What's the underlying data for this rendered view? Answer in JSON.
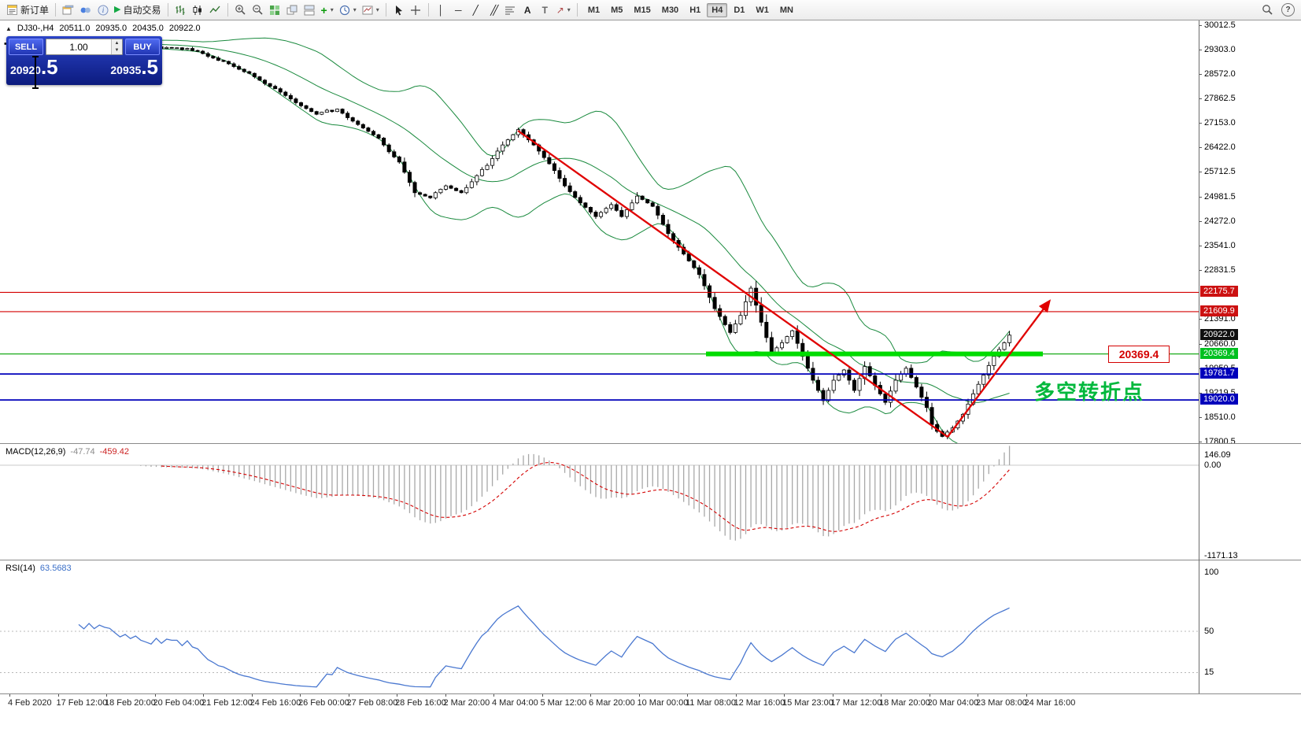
{
  "toolbar": {
    "new_order_label": "新订单",
    "autotrade_label": "自动交易",
    "timeframes": [
      "M1",
      "M5",
      "M15",
      "M30",
      "H1",
      "H4",
      "D1",
      "W1",
      "MN"
    ],
    "active_timeframe": "H4",
    "text_tool_label": "A",
    "label_tool_label": "T",
    "help_label": "?"
  },
  "chart_header": {
    "symbol_period": "DJ30-,H4",
    "open": "20511.0",
    "high": "20935.0",
    "low": "20435.0",
    "close": "20922.0"
  },
  "trade_panel": {
    "sell_label": "SELL",
    "buy_label": "BUY",
    "volume": "1.00",
    "sell_price_main": "20920",
    "sell_price_frac": ".5",
    "buy_price_main": "20935",
    "buy_price_frac": ".5"
  },
  "annotations": {
    "support_label": "20369.4",
    "pivot_text": "多空转折点"
  },
  "macd": {
    "name": "MACD(12,26,9)",
    "value_main": "-47.74",
    "value_signal": "-459.42",
    "axis": [
      [
        "146.09",
        578
      ],
      [
        "0.00",
        591
      ],
      [
        "-1171.13",
        706
      ]
    ]
  },
  "rsi": {
    "name": "RSI(14)",
    "value": "63.5683",
    "axis": [
      [
        "100",
        727
      ],
      [
        "50",
        802
      ],
      [
        "15",
        854
      ]
    ]
  },
  "price_axis": {
    "ticks": [
      [
        "30012.5",
        32
      ],
      [
        "29303.0",
        63
      ],
      [
        "28572.0",
        94
      ],
      [
        "27862.5",
        125
      ],
      [
        "27153.0",
        156
      ],
      [
        "26422.0",
        187
      ],
      [
        "25712.5",
        218
      ],
      [
        "24981.5",
        250
      ],
      [
        "24272.0",
        281
      ],
      [
        "23541.0",
        312
      ],
      [
        "22831.5",
        343
      ],
      [
        "21391.0",
        405
      ],
      [
        "20660.0",
        437
      ],
      [
        "19950.5",
        468
      ],
      [
        "19219.5",
        499
      ],
      [
        "18510.0",
        530
      ],
      [
        "17800.5",
        561
      ]
    ],
    "badges": [
      [
        "22175.7",
        371,
        "red"
      ],
      [
        "21609.9",
        396,
        "red"
      ],
      [
        "20922.0",
        426,
        "black"
      ],
      [
        "20369.4",
        450,
        "green"
      ],
      [
        "19781.7",
        475,
        "blue"
      ],
      [
        "19020.0",
        508,
        "blue"
      ]
    ]
  },
  "time_axis": {
    "labels": [
      "4 Feb 2020",
      "17 Feb 12:00",
      "18 Feb 20:00",
      "20 Feb 04:00",
      "21 Feb 12:00",
      "24 Feb 16:00",
      "26 Feb 00:00",
      "27 Feb 08:00",
      "28 Feb 16:00",
      "2 Mar 20:00",
      "4 Mar 04:00",
      "5 Mar 12:00",
      "6 Mar 20:00",
      "10 Mar 00:00",
      "11 Mar 08:00",
      "12 Mar 16:00",
      "15 Mar 23:00",
      "17 Mar 12:00",
      "18 Mar 20:00",
      "20 Mar 04:00",
      "23 Mar 08:00",
      "24 Mar 16:00"
    ]
  },
  "colors": {
    "candle_up": "#ffffff",
    "candle_down": "#000000",
    "wick": "#000000",
    "bollinger": "#1a8a3e",
    "trend_red": "#e00000",
    "level_red": "#d40000",
    "level_blue": "#0000bb",
    "support_green_thick": "#00dc00",
    "support_green_thin": "#00a000",
    "macd_hist": "#a8a8a8",
    "macd_signal": "#d40000",
    "rsi_line": "#4a78d0",
    "badge_red": "#cc1111",
    "badge_green": "#00c020",
    "badge_blue": "#0000bb",
    "badge_black": "#101010"
  },
  "chart_data": {
    "type": "candlestick",
    "symbol": "DJ30-",
    "period": "H4",
    "indicators": {
      "bollinger_period": 20,
      "bollinger_dev": 2,
      "macd": [
        12,
        26,
        9
      ],
      "rsi": 14
    },
    "levels": {
      "red_lines": [
        22175.7,
        21609.9
      ],
      "green_support": 20369.4,
      "blue_lines": [
        19781.7,
        19020.0
      ],
      "current_price": 20922.0
    },
    "closes": [
      29450,
      29480,
      29420,
      29460,
      29400,
      29440,
      29380,
      29430,
      29390,
      29410,
      29400,
      29450,
      29500,
      29460,
      29520,
      29480,
      29540,
      29490,
      29530,
      29510,
      29500,
      29460,
      29420,
      29440,
      29400,
      29420,
      29380,
      29360,
      29340,
      29380,
      29330,
      29360,
      29350,
      29350,
      29300,
      29330,
      29270,
      29250,
      29180,
      29100,
      29050,
      28980,
      28950,
      28880,
      28800,
      28720,
      28650,
      28600,
      28500,
      28400,
      28300,
      28220,
      28150,
      28050,
      27950,
      27850,
      27740,
      27650,
      27570,
      27480,
      27400,
      27460,
      27520,
      27480,
      27550,
      27430,
      27300,
      27200,
      27100,
      27000,
      26900,
      26800,
      26700,
      26500,
      26300,
      26150,
      26000,
      25700,
      25400,
      25100,
      25050,
      25000,
      24950,
      25100,
      25200,
      25300,
      25230,
      25160,
      25100,
      25250,
      25420,
      25600,
      25780,
      25900,
      26100,
      26320,
      26500,
      26650,
      26800,
      26950,
      26800,
      26650,
      26500,
      26320,
      26130,
      25950,
      25750,
      25520,
      25300,
      25130,
      24960,
      24800,
      24670,
      24530,
      24400,
      24520,
      24640,
      24750,
      24580,
      24400,
      24600,
      24800,
      25000,
      24900,
      24800,
      24700,
      24440,
      24170,
      23900,
      23700,
      23500,
      23300,
      23100,
      22900,
      22700,
      22370,
      22030,
      21700,
      21470,
      21230,
      21000,
      21250,
      21500,
      21900,
      22300,
      21800,
      21300,
      20850,
      20400,
      20550,
      20700,
      20880,
      21050,
      20680,
      20300,
      19950,
      19600,
      19300,
      19000,
      19300,
      19600,
      19750,
      19900,
      19600,
      19300,
      19650,
      20000,
      19730,
      19450,
      19200,
      18950,
      19280,
      19600,
      19780,
      19950,
      19680,
      19400,
      19100,
      18800,
      18300,
      18100,
      17950,
      18080,
      18200,
      18400,
      18600,
      18900,
      19200,
      19480,
      19750,
      20030,
      20300,
      20500,
      20700,
      20922
    ]
  }
}
